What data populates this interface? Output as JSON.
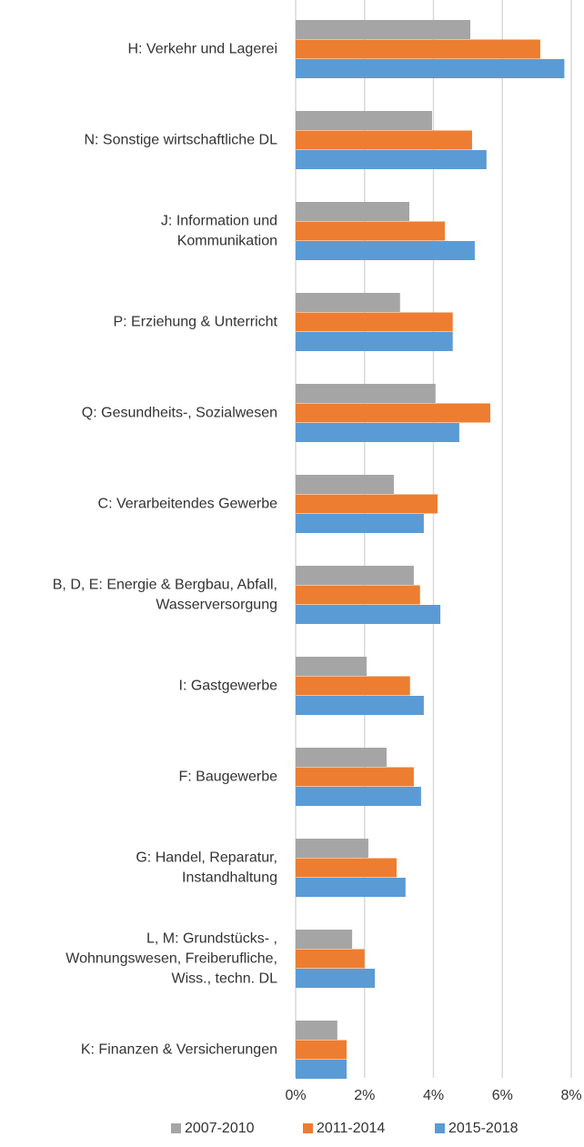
{
  "chart_data": {
    "type": "bar",
    "orientation": "horizontal",
    "categories": [
      [
        "H: Verkehr und Lagerei"
      ],
      [
        "N: Sonstige wirtschaftliche DL"
      ],
      [
        "J: Information und",
        "Kommunikation"
      ],
      [
        "P: Erziehung & Unterricht"
      ],
      [
        "Q: Gesundheits-, Sozialwesen"
      ],
      [
        "C: Verarbeitendes Gewerbe"
      ],
      [
        "B, D, E: Energie & Bergbau, Abfall,",
        "Wasserversorgung"
      ],
      [
        "I: Gastgewerbe"
      ],
      [
        "F: Baugewerbe"
      ],
      [
        "G: Handel, Reparatur,",
        "Instandhaltung"
      ],
      [
        "L, M: Grundstücks- ,",
        "Wohnungswesen, Freiberufliche,",
        "Wiss., techn. DL"
      ],
      [
        "K: Finanzen & Versicherungen"
      ]
    ],
    "series": [
      {
        "name": "2007-2010",
        "color": "#a5a5a5",
        "values": [
          5.07,
          3.96,
          3.3,
          3.03,
          4.06,
          2.85,
          3.43,
          2.06,
          2.64,
          2.11,
          1.64,
          1.21
        ]
      },
      {
        "name": "2011-2014",
        "color": "#ed7d31",
        "values": [
          7.1,
          5.12,
          4.33,
          4.56,
          5.65,
          4.12,
          3.61,
          3.32,
          3.43,
          2.93,
          2.0,
          1.48
        ]
      },
      {
        "name": "2015-2018",
        "color": "#5b9bd5",
        "values": [
          7.8,
          5.54,
          5.2,
          4.56,
          4.75,
          3.72,
          4.2,
          3.72,
          3.64,
          3.19,
          2.3,
          1.48
        ]
      }
    ],
    "xlim": [
      0,
      8
    ],
    "xticks": [
      {
        "value": 0,
        "label": "0%"
      },
      {
        "value": 2,
        "label": "2%"
      },
      {
        "value": 4,
        "label": "4%"
      },
      {
        "value": 6,
        "label": "6%"
      },
      {
        "value": 8,
        "label": "8%"
      }
    ],
    "grid": true,
    "legend": "bottom"
  }
}
